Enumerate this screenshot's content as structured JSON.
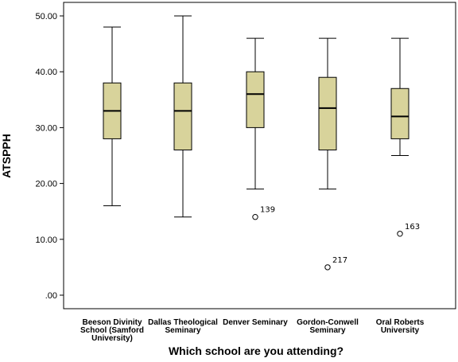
{
  "chart_data": {
    "type": "boxplot",
    "title": "",
    "xlabel": "Which school are you attending?",
    "ylabel": "ATSPPH",
    "ylim": [
      0,
      50
    ],
    "yticks": [
      0,
      10,
      20,
      30,
      40,
      50
    ],
    "ytick_labels": [
      ".00",
      "10.00",
      "20.00",
      "30.00",
      "40.00",
      "50.00"
    ],
    "grid": false,
    "box_color": "#d8d39b",
    "categories": [
      {
        "label": [
          "Beeson Divinity",
          "School (Samford",
          "University)"
        ],
        "min": 16,
        "q1": 28,
        "median": 33,
        "q3": 38,
        "max": 48,
        "outliers": []
      },
      {
        "label": [
          "Dallas Theological",
          "Seminary"
        ],
        "min": 14,
        "q1": 26,
        "median": 33,
        "q3": 38,
        "max": 50,
        "outliers": []
      },
      {
        "label": [
          "Denver Seminary"
        ],
        "min": 19,
        "q1": 30,
        "median": 36,
        "q3": 40,
        "max": 46,
        "outliers": [
          {
            "value": 14,
            "label": "139"
          }
        ]
      },
      {
        "label": [
          "Gordon-Conwell",
          "Seminary"
        ],
        "min": 19,
        "q1": 26,
        "median": 33.5,
        "q3": 39,
        "max": 46,
        "outliers": [
          {
            "value": 5,
            "label": "217"
          }
        ]
      },
      {
        "label": [
          "Oral Roberts",
          "University"
        ],
        "min": 25,
        "q1": 28,
        "median": 32,
        "q3": 37,
        "max": 46,
        "outliers": [
          {
            "value": 11,
            "label": "163"
          }
        ]
      }
    ]
  }
}
